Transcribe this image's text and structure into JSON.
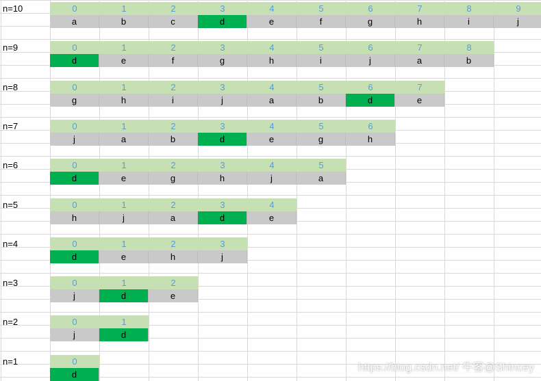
{
  "rows": [
    {
      "label": "n=10",
      "values": [
        "a",
        "b",
        "c",
        "d",
        "e",
        "f",
        "g",
        "h",
        "i",
        "j"
      ],
      "highlight": 3
    },
    {
      "label": "n=9",
      "values": [
        "d",
        "e",
        "f",
        "g",
        "h",
        "i",
        "j",
        "a",
        "b"
      ],
      "highlight": 0
    },
    {
      "label": "n=8",
      "values": [
        "g",
        "h",
        "i",
        "j",
        "a",
        "b",
        "d",
        "e"
      ],
      "highlight": 6
    },
    {
      "label": "n=7",
      "values": [
        "j",
        "a",
        "b",
        "d",
        "e",
        "g",
        "h"
      ],
      "highlight": 3
    },
    {
      "label": "n=6",
      "values": [
        "d",
        "e",
        "g",
        "h",
        "j",
        "a"
      ],
      "highlight": 0
    },
    {
      "label": "n=5",
      "values": [
        "h",
        "j",
        "a",
        "d",
        "e"
      ],
      "highlight": 3
    },
    {
      "label": "n=4",
      "values": [
        "d",
        "e",
        "h",
        "j"
      ],
      "highlight": 0
    },
    {
      "label": "n=3",
      "values": [
        "j",
        "d",
        "e"
      ],
      "highlight": 1
    },
    {
      "label": "n=2",
      "values": [
        "j",
        "d"
      ],
      "highlight": 1
    },
    {
      "label": "n=1",
      "values": [
        "d"
      ],
      "highlight": 0
    }
  ],
  "colors": {
    "index_bg": "#c6e0b4",
    "index_text": "#5b9bd5",
    "value_bg": "#c9c9c9",
    "highlight": "#00b050",
    "grid": "#d9d9d9"
  },
  "watermark": "https://blog.csdn.net/ 牛客@Shincey"
}
